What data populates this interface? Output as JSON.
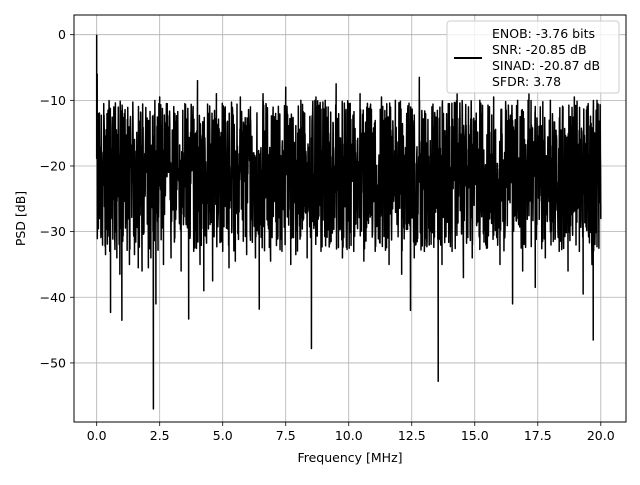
{
  "chart_data": {
    "type": "line",
    "title": "",
    "xlabel": "Frequency [MHz]",
    "ylabel": "PSD [dB]",
    "xlim": [
      -0.9,
      21.0
    ],
    "ylim": [
      -59.0,
      3.0
    ],
    "xticks": [
      0.0,
      2.5,
      5.0,
      7.5,
      10.0,
      12.5,
      15.0,
      17.5,
      20.0
    ],
    "xtick_labels": [
      "0.0",
      "2.5",
      "5.0",
      "7.5",
      "10.0",
      "12.5",
      "15.0",
      "17.5",
      "20.0"
    ],
    "yticks": [
      0,
      -10,
      -20,
      -30,
      -40,
      -50
    ],
    "ytick_labels": [
      "0",
      "−10",
      "−20",
      "−30",
      "−40",
      "−50"
    ],
    "grid": true,
    "legend": {
      "placement": "upper-right",
      "entries": [
        "ENOB: -3.76 bits",
        "SNR: -20.85 dB",
        "SINAD: -20.87 dB",
        "SFDR: 3.78"
      ]
    },
    "series": [
      {
        "color": "#000000",
        "noise_floor_db": [
          -33,
          -10
        ],
        "noise_mean_db": -20.9,
        "points": [
          [
            0.0,
            0.0
          ],
          [
            0.02,
            -6.0
          ],
          [
            0.05,
            -24.0
          ],
          [
            0.08,
            -12.0
          ],
          [
            0.12,
            -28.0
          ],
          [
            0.2,
            -30.5
          ],
          [
            0.28,
            -10.5
          ],
          [
            0.35,
            -33.5
          ],
          [
            0.45,
            -11.5
          ],
          [
            0.52,
            -33.0
          ],
          [
            0.55,
            -42.3
          ],
          [
            0.68,
            -11.0
          ],
          [
            0.8,
            -34.0
          ],
          [
            0.92,
            -36.5
          ],
          [
            1.0,
            -43.5
          ],
          [
            1.1,
            -12.0
          ],
          [
            1.3,
            -35.0
          ],
          [
            1.5,
            -33.5
          ],
          [
            1.65,
            -35.5
          ],
          [
            1.8,
            -36.0
          ],
          [
            2.0,
            -13.0
          ],
          [
            2.05,
            -35.5
          ],
          [
            2.15,
            -34.0
          ],
          [
            2.25,
            -57.0
          ],
          [
            2.35,
            -41.0
          ],
          [
            2.5,
            -9.5
          ],
          [
            2.65,
            -35.0
          ],
          [
            2.8,
            -10.5
          ],
          [
            2.95,
            -34.0
          ],
          [
            3.1,
            -12.0
          ],
          [
            3.35,
            -36.0
          ],
          [
            3.5,
            -10.5
          ],
          [
            3.65,
            -43.3
          ],
          [
            3.85,
            -33.0
          ],
          [
            4.0,
            -7.0
          ],
          [
            4.1,
            -35.0
          ],
          [
            4.25,
            -39.0
          ],
          [
            4.45,
            -12.0
          ],
          [
            4.6,
            -37.5
          ],
          [
            4.75,
            -9.0
          ],
          [
            5.0,
            -33.0
          ],
          [
            5.1,
            -11.0
          ],
          [
            5.25,
            -35.5
          ],
          [
            5.5,
            -34.5
          ],
          [
            5.7,
            -9.5
          ],
          [
            5.95,
            -33.5
          ],
          [
            6.1,
            -11.0
          ],
          [
            6.3,
            -34.0
          ],
          [
            6.45,
            -41.8
          ],
          [
            6.6,
            -9.0
          ],
          [
            6.9,
            -34.5
          ],
          [
            7.1,
            -12.0
          ],
          [
            7.35,
            -33.0
          ],
          [
            7.5,
            -8.0
          ],
          [
            7.7,
            -35.0
          ],
          [
            7.9,
            -33.5
          ],
          [
            8.1,
            -10.0
          ],
          [
            8.35,
            -34.0
          ],
          [
            8.52,
            -47.8
          ],
          [
            8.7,
            -9.5
          ],
          [
            8.9,
            -33.0
          ],
          [
            9.1,
            -11.0
          ],
          [
            9.3,
            -31.5
          ],
          [
            9.5,
            -7.5
          ],
          [
            9.75,
            -34.0
          ],
          [
            10.0,
            -10.5
          ],
          [
            10.2,
            -33.0
          ],
          [
            10.45,
            -9.0
          ],
          [
            10.6,
            -34.5
          ],
          [
            10.85,
            -11.0
          ],
          [
            11.05,
            -33.0
          ],
          [
            11.3,
            -9.5
          ],
          [
            11.6,
            -35.0
          ],
          [
            11.85,
            -10.0
          ],
          [
            12.1,
            -36.5
          ],
          [
            12.3,
            -12.0
          ],
          [
            12.45,
            -42.0
          ],
          [
            12.6,
            -34.0
          ],
          [
            12.8,
            -6.5
          ],
          [
            13.0,
            -33.0
          ],
          [
            13.3,
            -11.0
          ],
          [
            13.55,
            -52.8
          ],
          [
            13.7,
            -35.0
          ],
          [
            13.95,
            -10.5
          ],
          [
            14.1,
            -33.0
          ],
          [
            14.3,
            -9.0
          ],
          [
            14.55,
            -37.0
          ],
          [
            14.75,
            -11.0
          ],
          [
            14.9,
            -34.0
          ],
          [
            15.2,
            -10.0
          ],
          [
            15.5,
            -32.5
          ],
          [
            15.75,
            -9.5
          ],
          [
            16.0,
            -35.0
          ],
          [
            16.25,
            -11.5
          ],
          [
            16.5,
            -41.0
          ],
          [
            16.7,
            -10.0
          ],
          [
            16.9,
            -36.0
          ],
          [
            17.15,
            -9.0
          ],
          [
            17.4,
            -38.5
          ],
          [
            17.6,
            -11.0
          ],
          [
            17.8,
            -34.0
          ],
          [
            18.0,
            -10.0
          ],
          [
            18.35,
            -33.0
          ],
          [
            18.5,
            -11.0
          ],
          [
            18.7,
            -36.0
          ],
          [
            18.95,
            -9.5
          ],
          [
            19.15,
            -33.0
          ],
          [
            19.3,
            -39.5
          ],
          [
            19.5,
            -10.5
          ],
          [
            19.65,
            -35.0
          ],
          [
            19.7,
            -46.5
          ],
          [
            19.85,
            -10.0
          ],
          [
            20.0,
            -28.0
          ]
        ]
      }
    ]
  }
}
